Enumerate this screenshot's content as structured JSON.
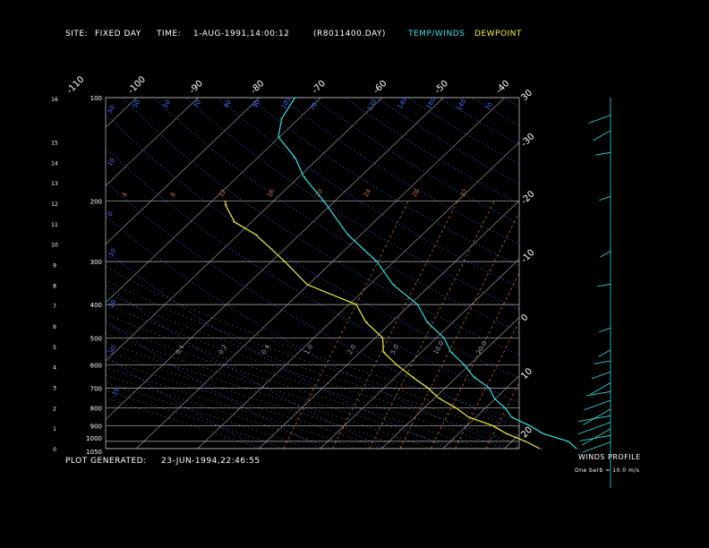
{
  "header": {
    "site_label": "SITE:",
    "site_value": "FIXED DAY",
    "time_label": "TIME:",
    "time_value": "1-AUG-1991,14:00:12",
    "file_value": "(R8011400.DAY)",
    "legend_temp": "TEMP/WINDS",
    "legend_dew": "DEWPOINT"
  },
  "footer": {
    "plot_generated_label": "PLOT GENERATED:",
    "plot_generated_value": "23-JUN-1994,22:46:55"
  },
  "wind_profile": {
    "title": "WINDS PROFILE",
    "note": "One barb = 10.0 m/s"
  },
  "colors": {
    "temp": "#33e0e0",
    "dewpoint": "#f0f040",
    "isobar": "#b4b4b4",
    "isotherm": "#a8a8a8",
    "dry_adiabat": "#4a6aff",
    "moist_adiabat": "#9aa0b0",
    "mixing_ratio": "#d07040",
    "height_label": "#ffffff",
    "wind": "#33e0e0"
  },
  "chart_data": {
    "type": "skew-t",
    "pressure_ticks": [
      "100",
      "200",
      "300",
      "400",
      "500",
      "600",
      "700",
      "800",
      "900",
      "1000",
      "1050"
    ],
    "pressure_values": [
      100,
      200,
      300,
      400,
      500,
      600,
      700,
      800,
      900,
      1000,
      1050
    ],
    "height_ticks_km": [
      "16",
      "15",
      "14",
      "13",
      "12",
      "11",
      "10",
      "9",
      "8",
      "7",
      "6",
      "5",
      "4",
      "3",
      "2",
      "1",
      "0"
    ],
    "top_temperature_ticks": [
      "-110",
      "-100",
      "-90",
      "-80",
      "-70",
      "-60",
      "-50",
      "-40"
    ],
    "right_temperature_ticks": [
      "-30",
      "-20",
      "-10",
      "0",
      "10",
      "20",
      "30"
    ],
    "dry_adiabat_labels": [
      "50",
      "50",
      "50",
      "70",
      "80",
      "90",
      "103",
      "70",
      "130",
      "140",
      "160",
      "140",
      "70",
      "10",
      "0",
      "-10",
      "-20",
      "-30",
      "-35"
    ],
    "mixing_ratio_labels": [
      "4",
      "8",
      "12",
      "16",
      "20",
      "24",
      "28",
      "32"
    ],
    "moist_labels": [
      "0.1",
      "0.2",
      "0.4",
      "1.0",
      "2.0",
      "5.0",
      "10.0",
      "20.0"
    ],
    "temperature_profile": [
      {
        "p": 1050,
        "t": 32
      },
      {
        "p": 1000,
        "t": 29
      },
      {
        "p": 950,
        "t": 24
      },
      {
        "p": 900,
        "t": 20
      },
      {
        "p": 850,
        "t": 16
      },
      {
        "p": 800,
        "t": 13
      },
      {
        "p": 750,
        "t": 10
      },
      {
        "p": 700,
        "t": 7
      },
      {
        "p": 650,
        "t": 3
      },
      {
        "p": 600,
        "t": -1
      },
      {
        "p": 550,
        "t": -5
      },
      {
        "p": 500,
        "t": -9
      },
      {
        "p": 450,
        "t": -14
      },
      {
        "p": 400,
        "t": -19
      },
      {
        "p": 350,
        "t": -26
      },
      {
        "p": 300,
        "t": -33
      },
      {
        "p": 250,
        "t": -42
      },
      {
        "p": 200,
        "t": -52
      },
      {
        "p": 170,
        "t": -59
      },
      {
        "p": 150,
        "t": -64
      },
      {
        "p": 130,
        "t": -70
      },
      {
        "p": 115,
        "t": -73
      },
      {
        "p": 100,
        "t": -74
      }
    ],
    "dewpoint_profile": [
      {
        "p": 1050,
        "t": 26
      },
      {
        "p": 1000,
        "t": 22
      },
      {
        "p": 950,
        "t": 18
      },
      {
        "p": 900,
        "t": 14
      },
      {
        "p": 850,
        "t": 9
      },
      {
        "p": 800,
        "t": 5
      },
      {
        "p": 750,
        "t": 1
      },
      {
        "p": 700,
        "t": -3
      },
      {
        "p": 650,
        "t": -7
      },
      {
        "p": 600,
        "t": -12
      },
      {
        "p": 550,
        "t": -16
      },
      {
        "p": 500,
        "t": -19
      },
      {
        "p": 450,
        "t": -24
      },
      {
        "p": 400,
        "t": -29
      },
      {
        "p": 350,
        "t": -40
      },
      {
        "p": 300,
        "t": -48
      },
      {
        "p": 250,
        "t": -57
      },
      {
        "p": 230,
        "t": -63
      },
      {
        "p": 205,
        "t": -67
      },
      {
        "p": 200,
        "t": -68
      }
    ],
    "wind_profile": [
      {
        "h": 0.3,
        "spd": 28
      },
      {
        "h": 0.6,
        "spd": 30
      },
      {
        "h": 0.9,
        "spd": 32
      },
      {
        "h": 1.2,
        "spd": 34
      },
      {
        "h": 1.5,
        "spd": 32
      },
      {
        "h": 1.8,
        "spd": 30
      },
      {
        "h": 2.2,
        "spd": 26
      },
      {
        "h": 2.6,
        "spd": 22
      },
      {
        "h": 3.0,
        "spd": 20
      },
      {
        "h": 3.5,
        "spd": 16
      },
      {
        "h": 4.0,
        "spd": 12
      },
      {
        "h": 4.5,
        "spd": 8
      },
      {
        "h": 5.5,
        "spd": 6
      },
      {
        "h": 7.5,
        "spd": 8
      },
      {
        "h": 9.0,
        "spd": 6
      },
      {
        "h": 11.5,
        "spd": 6
      },
      {
        "h": 13.5,
        "spd": 10
      },
      {
        "h": 14.5,
        "spd": 16
      },
      {
        "h": 15.2,
        "spd": 20
      }
    ]
  }
}
